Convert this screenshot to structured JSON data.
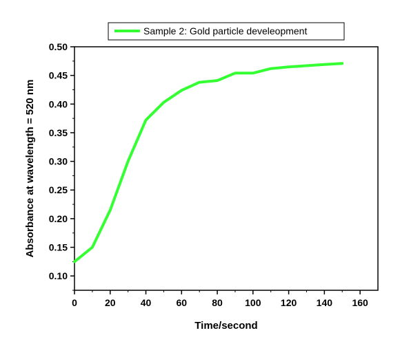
{
  "chart_data": {
    "type": "line",
    "title": "",
    "xlabel": "Time/second",
    "ylabel": "Absorbance at wavelength = 520 nm",
    "xlim": [
      0,
      170
    ],
    "ylim": [
      0.075,
      0.5
    ],
    "x_ticks": [
      0,
      20,
      40,
      60,
      80,
      100,
      120,
      140,
      160
    ],
    "x_tick_labels": [
      "0",
      "20",
      "40",
      "60",
      "80",
      "100",
      "120",
      "140",
      "160"
    ],
    "y_ticks": [
      0.1,
      0.15,
      0.2,
      0.25,
      0.3,
      0.35,
      0.4,
      0.45,
      0.5
    ],
    "y_tick_labels": [
      "0.10",
      "0.15",
      "0.20",
      "0.25",
      "0.30",
      "0.35",
      "0.40",
      "0.45",
      "0.50"
    ],
    "grid": false,
    "legend_position": "top",
    "series": [
      {
        "name": "Sample 2: Gold particle develeopment",
        "color": "#33ff33",
        "x": [
          0,
          10,
          20,
          30,
          40,
          50,
          60,
          70,
          80,
          90,
          100,
          110,
          120,
          130,
          140,
          150
        ],
        "y": [
          0.125,
          0.15,
          0.215,
          0.3,
          0.372,
          0.403,
          0.424,
          0.438,
          0.441,
          0.454,
          0.454,
          0.462,
          0.465,
          0.467,
          0.469,
          0.471
        ]
      }
    ]
  }
}
